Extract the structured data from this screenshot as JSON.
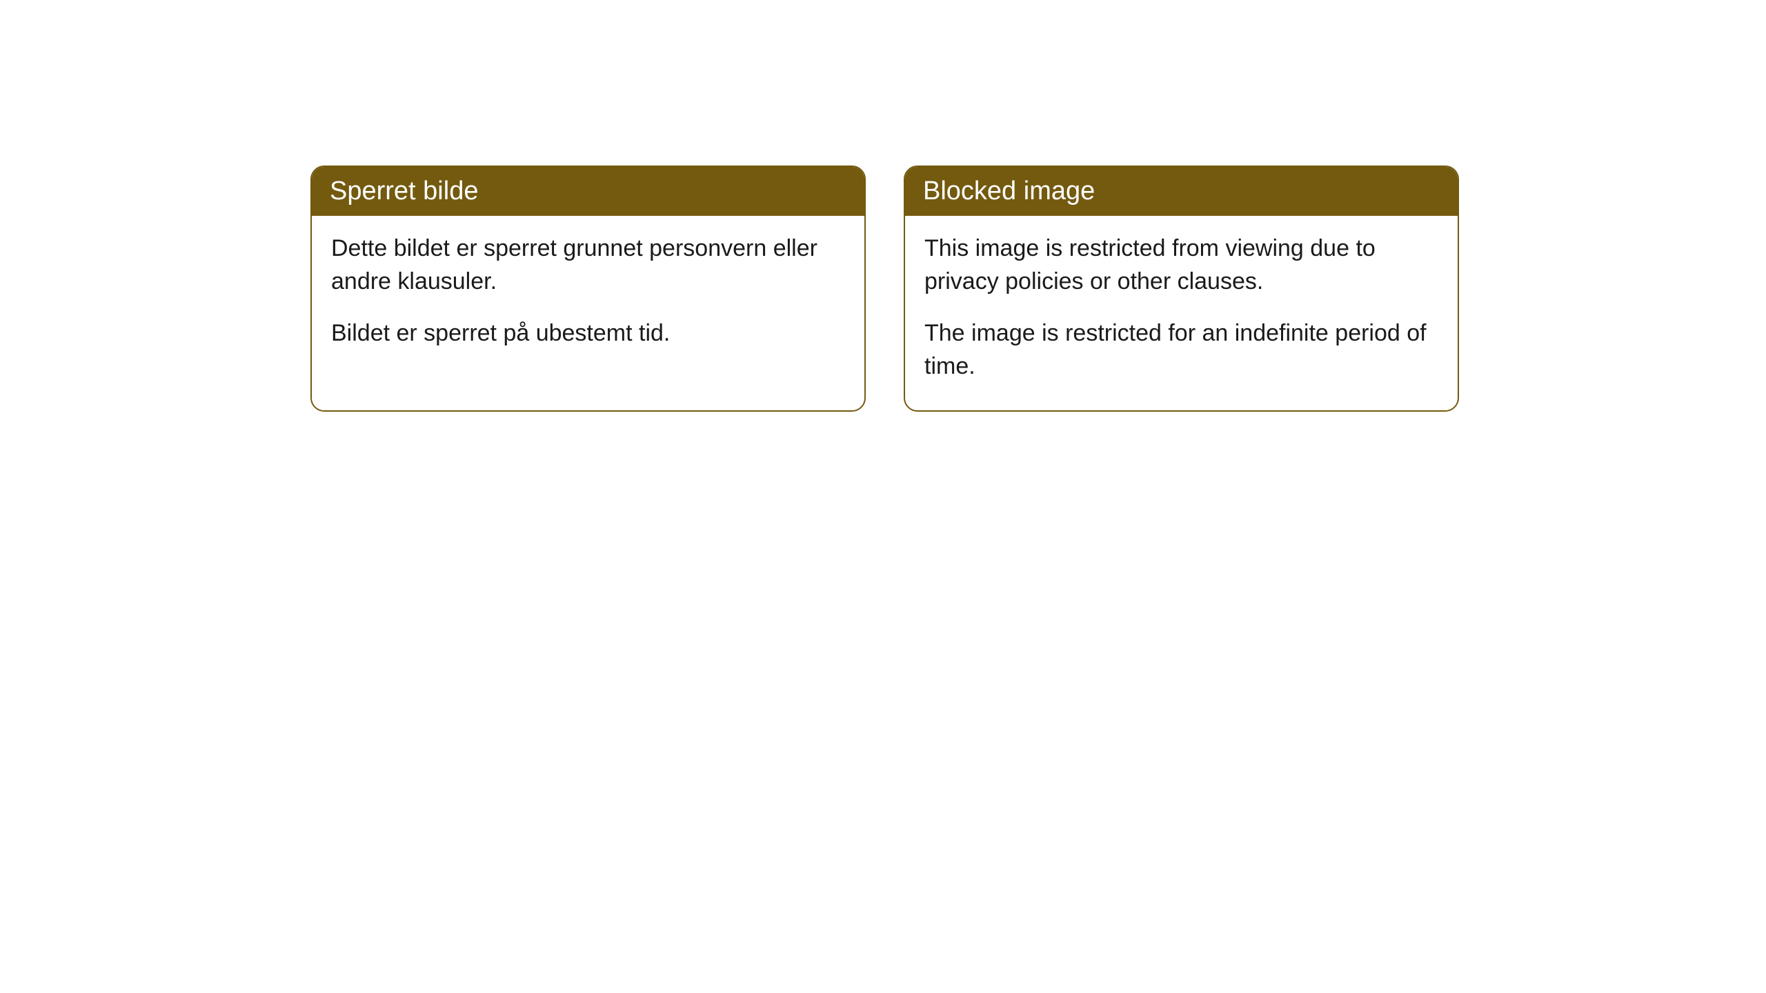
{
  "cards": [
    {
      "title": "Sperret bilde",
      "paragraph1": "Dette bildet er sperret grunnet personvern eller andre klausuler.",
      "paragraph2": "Bildet er sperret på ubestemt tid."
    },
    {
      "title": "Blocked image",
      "paragraph1": "This image is restricted from viewing due to privacy policies or other clauses.",
      "paragraph2": "The image is restricted for an indefinite period of time."
    }
  ],
  "styling": {
    "header_background": "#735a0f",
    "header_text_color": "#ffffff",
    "border_color": "#735a0f",
    "body_text_color": "#1a1a1a",
    "card_background": "#ffffff",
    "page_background": "#ffffff",
    "border_radius": 20,
    "title_fontsize": 38,
    "body_fontsize": 34
  }
}
